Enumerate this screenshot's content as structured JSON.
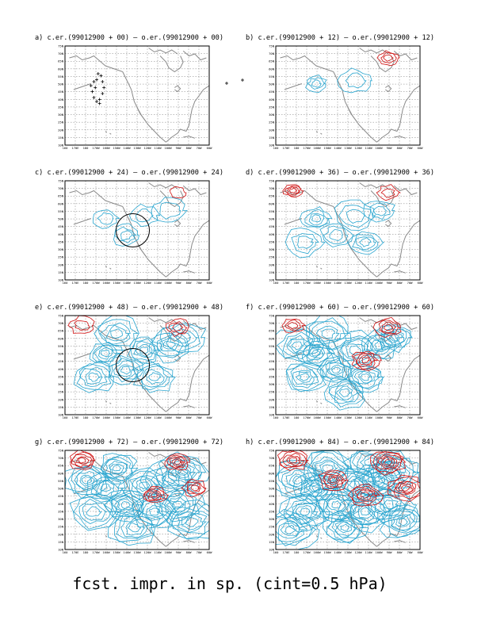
{
  "figure": {
    "caption": "fcst. impr. in sp. (cint=0.5 hPa)"
  },
  "colors": {
    "coast": "#8a8a8a",
    "grid": "#555555",
    "negative_contour": "#2aa6d0",
    "positive_contour": "#d01010",
    "frame": "#000000",
    "marker": "#000000"
  },
  "axes": {
    "lat_labels": [
      "10N",
      "15N",
      "20N",
      "25N",
      "30N",
      "35N",
      "40N",
      "45N",
      "50N",
      "55N",
      "60N",
      "65N",
      "70N",
      "75N"
    ],
    "lon_labels": [
      "160",
      "170E",
      "180",
      "170W",
      "160W",
      "150W",
      "140W",
      "130W",
      "120W",
      "110W",
      "100W",
      "90W",
      "80W",
      "70W",
      "60W"
    ]
  },
  "panels": [
    {
      "id": "a",
      "title": "a) c.er.(99012900 + 00) – o.er.(99012900 + 00)",
      "neg": 0,
      "pos": 0,
      "circle": false,
      "markers": true
    },
    {
      "id": "b",
      "title": "b) c.er.(99012900 + 12) – o.er.(99012900 + 12)",
      "neg": 1,
      "pos": 1,
      "circle": false,
      "markers": false
    },
    {
      "id": "c",
      "title": "c) c.er.(99012900 + 24) – o.er.(99012900 + 24)",
      "neg": 2,
      "pos": 1,
      "circle": true,
      "markers": false
    },
    {
      "id": "d",
      "title": "d) c.er.(99012900 + 36) – o.er.(99012900 + 36)",
      "neg": 3,
      "pos": 2,
      "circle": false,
      "markers": false
    },
    {
      "id": "e",
      "title": "e) c.er.(99012900 + 48) – o.er.(99012900 + 48)",
      "neg": 4,
      "pos": 2,
      "circle": true,
      "markers": false
    },
    {
      "id": "f",
      "title": "f) c.er.(99012900 + 60) – o.er.(99012900 + 60)",
      "neg": 5,
      "pos": 3,
      "circle": false,
      "markers": false
    },
    {
      "id": "g",
      "title": "g) c.er.(99012900 + 72) – o.er.(99012900 + 72)",
      "neg": 6,
      "pos": 4,
      "circle": false,
      "markers": false
    },
    {
      "id": "h",
      "title": "h) c.er.(99012900 + 84) – o.er.(99012900 + 84)",
      "neg": 7,
      "pos": 5,
      "circle": false,
      "markers": false
    }
  ]
}
